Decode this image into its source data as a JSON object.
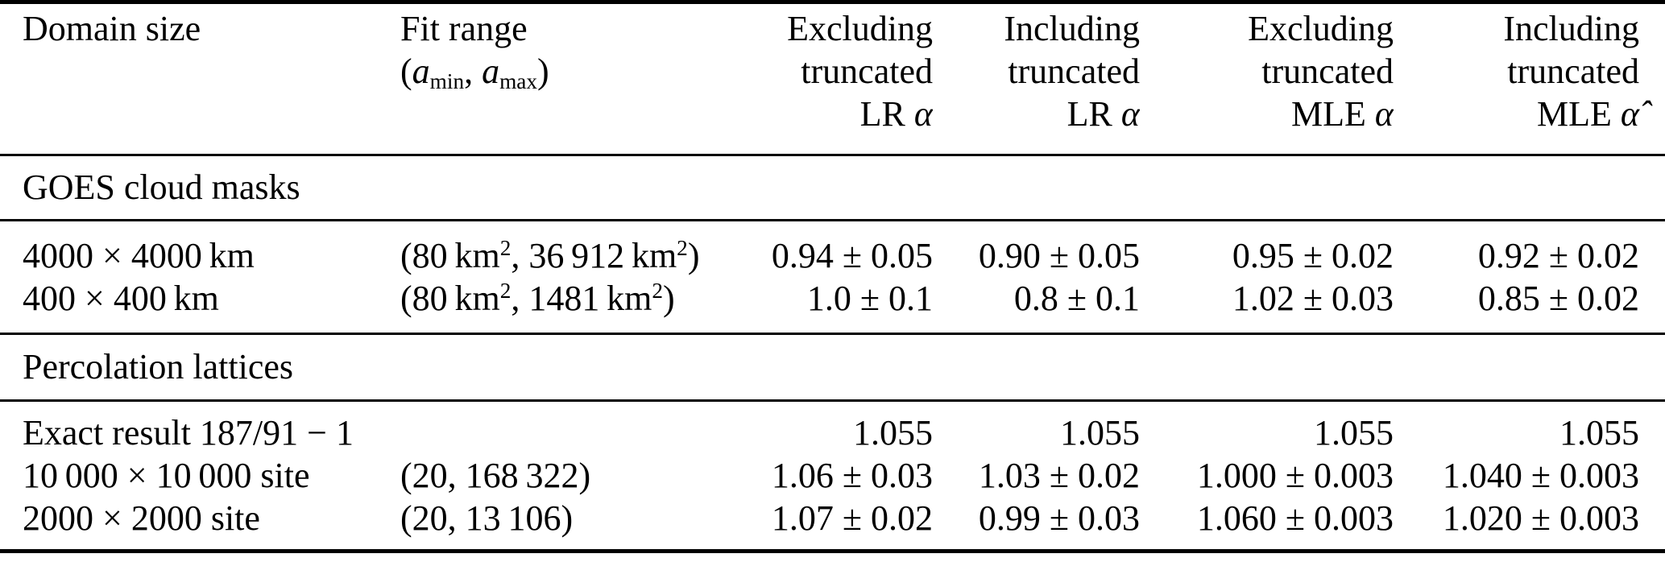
{
  "meta": {
    "background_color": "#ffffff",
    "text_color": "#000000",
    "rule_color": "#000000"
  },
  "table": {
    "header": {
      "domain": "Domain size",
      "fit": [
        "Fit range",
        "(<i>a</i><sub>min</sub>, <i>a</i><sub>max</sub>)"
      ],
      "lr_excluding": [
        "Excluding",
        "truncated",
        "LR <i>α̂</i>"
      ],
      "lr_including": [
        "Including",
        "truncated",
        "LR <i>α̂</i>"
      ],
      "mle_excluding": [
        "Excluding",
        "truncated",
        "MLE <i>α̂</i>"
      ],
      "mle_including": [
        "Including",
        "truncated",
        "MLE <i>α̂</i>"
      ]
    },
    "sections": [
      {
        "title": "GOES cloud masks",
        "rows": [
          {
            "cells": [
              "4000 × 4000 km",
              "(80 km<sup>2</sup>, 36 912 km<sup>2</sup>)",
              "0.94 ± 0.05",
              "0.90 ± 0.05",
              "0.95 ± 0.02",
              "0.92 ± 0.02"
            ]
          },
          {
            "cells": [
              "400 × 400 km",
              "(80 km<sup>2</sup>, 1481 km<sup>2</sup>)",
              "1.0 ± 0.1",
              "0.8 ± 0.1",
              "1.02 ± 0.03",
              "0.85 ± 0.02"
            ]
          }
        ]
      },
      {
        "title": "Percolation lattices",
        "rows": [
          {
            "cells": [
              "Exact result 187/91 − 1",
              "",
              "1.055",
              "1.055",
              "1.055",
              "1.055"
            ]
          },
          {
            "cells": [
              "10 000 × 10 000 site",
              "(20, 168 322)",
              "1.06 ± 0.03",
              "1.03 ± 0.02",
              "1.000 ± 0.003",
              "1.040 ± 0.003"
            ]
          },
          {
            "cells": [
              "2000 × 2000 site",
              "(20, 13 106)",
              "1.07 ± 0.02",
              "0.99 ± 0.03",
              "1.060 ± 0.003",
              "1.020 ± 0.003"
            ]
          }
        ]
      }
    ]
  }
}
